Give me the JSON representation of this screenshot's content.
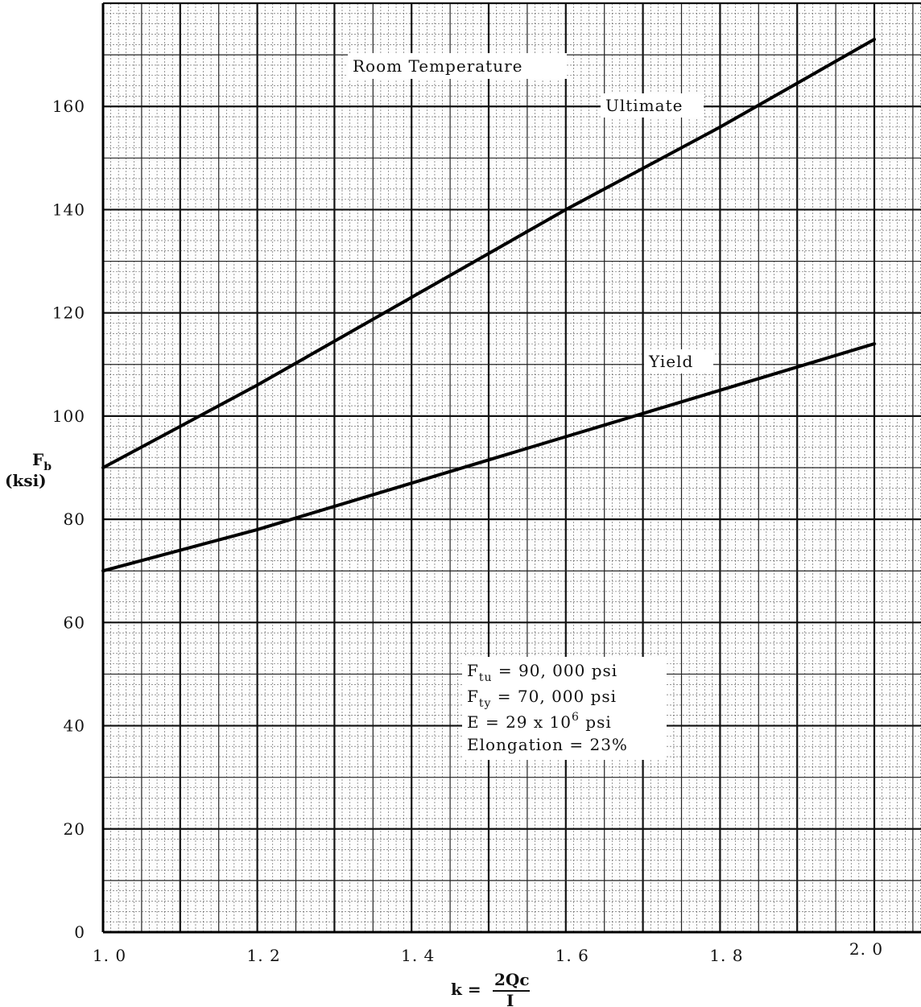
{
  "chart_data": {
    "type": "line",
    "title": "Room Temperature",
    "xlabel": {
      "prefix": "k = ",
      "numerator": "2Qc",
      "denominator": "I"
    },
    "ylabel": {
      "symbol": "F",
      "subscript": "b",
      "unit": "(ksi)"
    },
    "xlim": [
      1.0,
      2.0
    ],
    "ylim": [
      0,
      180
    ],
    "x_ticks": [
      1.0,
      1.2,
      1.4,
      1.6,
      1.8,
      2.0
    ],
    "x_tick_labels": [
      "1. 0",
      "1. 2",
      "1. 4",
      "1. 6",
      "1. 8",
      "2. 0"
    ],
    "y_ticks": [
      0,
      20,
      40,
      60,
      80,
      100,
      120,
      140,
      160
    ],
    "y_tick_labels": [
      "0",
      "20",
      "40",
      "60",
      "80",
      "100",
      "120",
      "140",
      "160"
    ],
    "grid": true,
    "series": [
      {
        "name": "Ultimate",
        "x": [
          1.0,
          1.2,
          1.4,
          1.6,
          1.8,
          2.0
        ],
        "y": [
          90,
          106,
          123,
          140,
          156,
          173
        ]
      },
      {
        "name": "Yield",
        "x": [
          1.0,
          1.2,
          1.4,
          1.6,
          1.8,
          2.0
        ],
        "y": [
          70,
          78,
          87,
          96,
          105,
          114
        ]
      }
    ],
    "annotations": {
      "properties": [
        {
          "symbol": "F",
          "sub": "tu",
          "text": " = 90, 000 psi"
        },
        {
          "symbol": "F",
          "sub": "ty",
          "text": " = 70, 000 psi"
        },
        {
          "symbol": "E",
          "sub": "",
          "text": "    = 29 x 10",
          "sup": "6",
          "tail": " psi"
        },
        {
          "symbol": "",
          "sub": "",
          "text": "Elongation = 23%"
        }
      ]
    }
  }
}
